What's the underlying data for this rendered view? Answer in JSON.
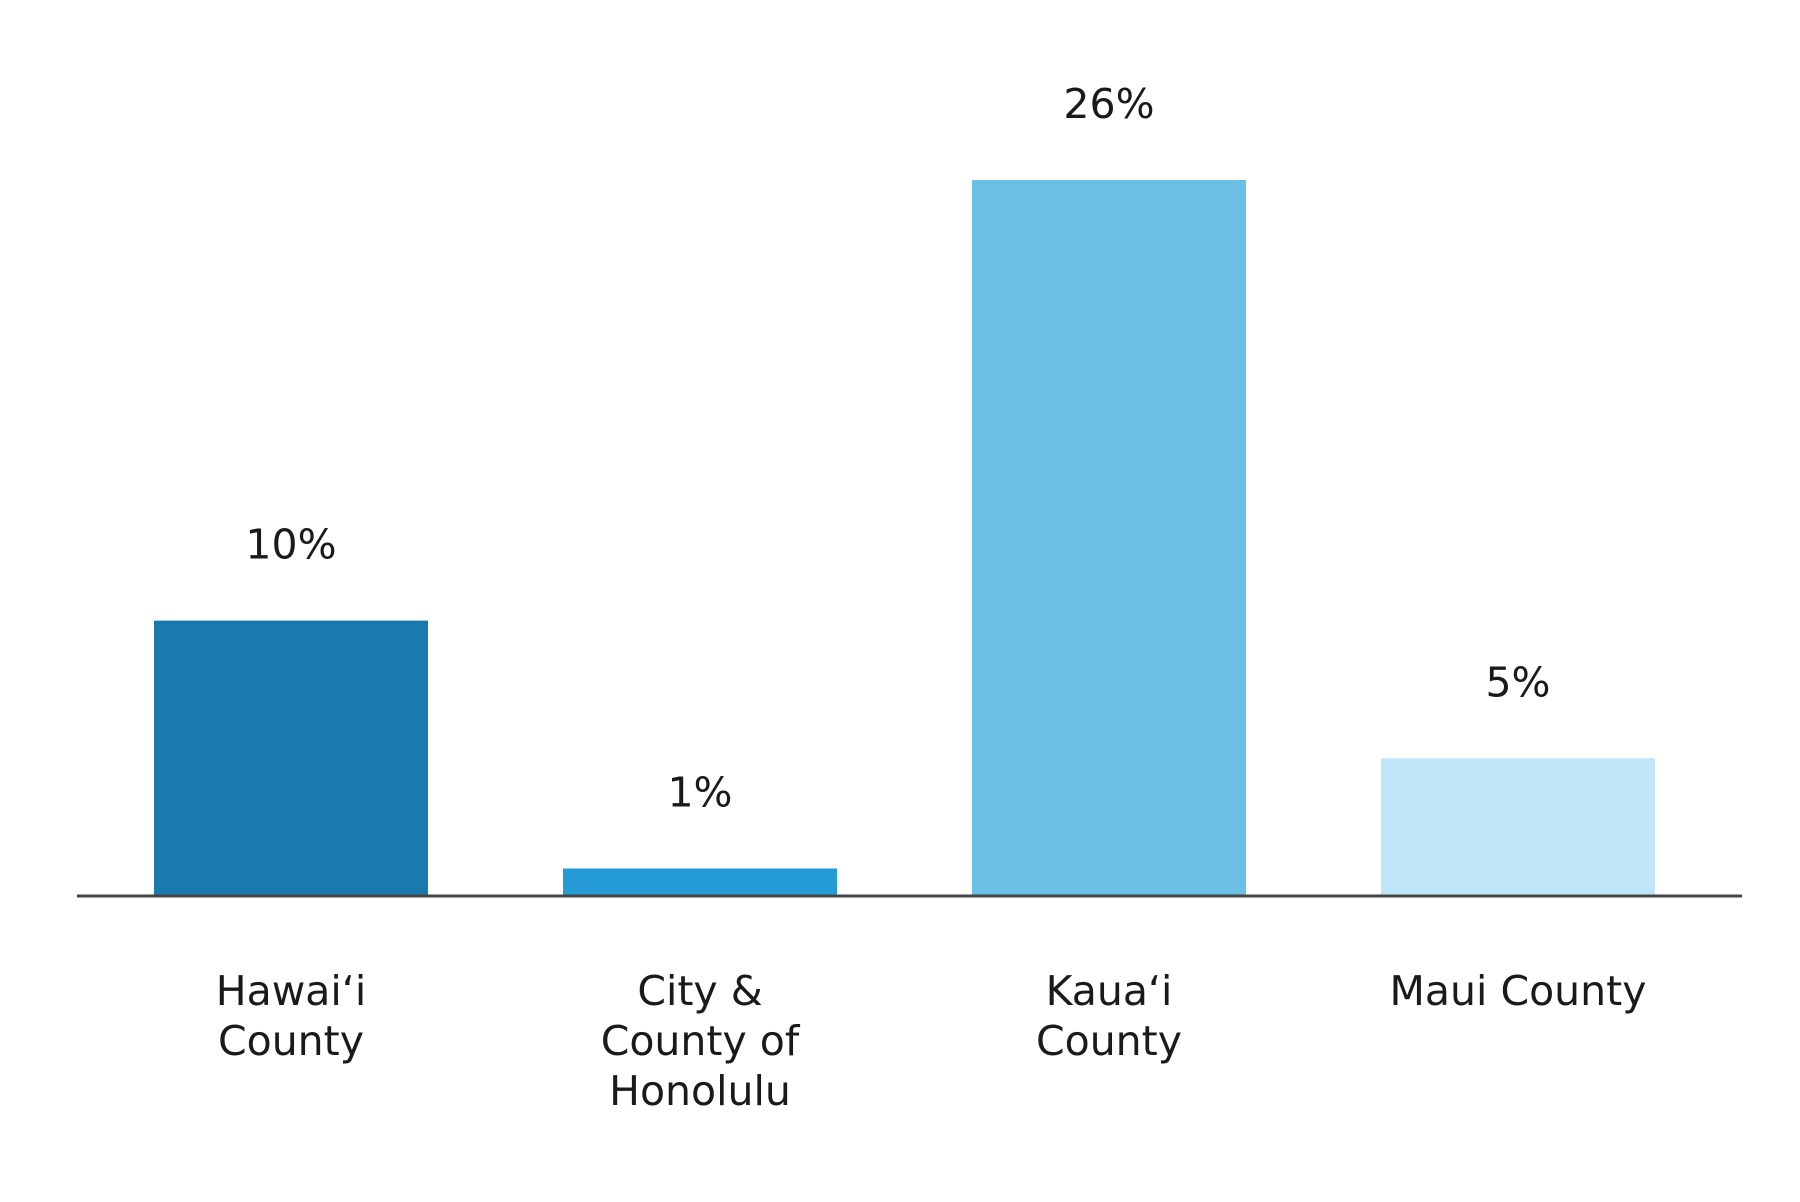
{
  "chart_data": {
    "type": "bar",
    "categories": [
      [
        "Hawai‘i",
        "County"
      ],
      [
        "City &",
        "County of",
        "Honolulu"
      ],
      [
        "Kaua‘i",
        "County"
      ],
      [
        "Maui County"
      ]
    ],
    "values": [
      10,
      1,
      26,
      5
    ],
    "value_labels": [
      "10%",
      "1%",
      "26%",
      "5%"
    ],
    "colors": [
      "#1a7aad",
      "#259bd6",
      "#6bc1e5",
      "#bee6f8"
    ],
    "axis_color": "#444444",
    "title": "",
    "xlabel": "",
    "ylabel": "",
    "ylim": [
      0,
      26
    ],
    "grid": false,
    "legend": "none"
  }
}
